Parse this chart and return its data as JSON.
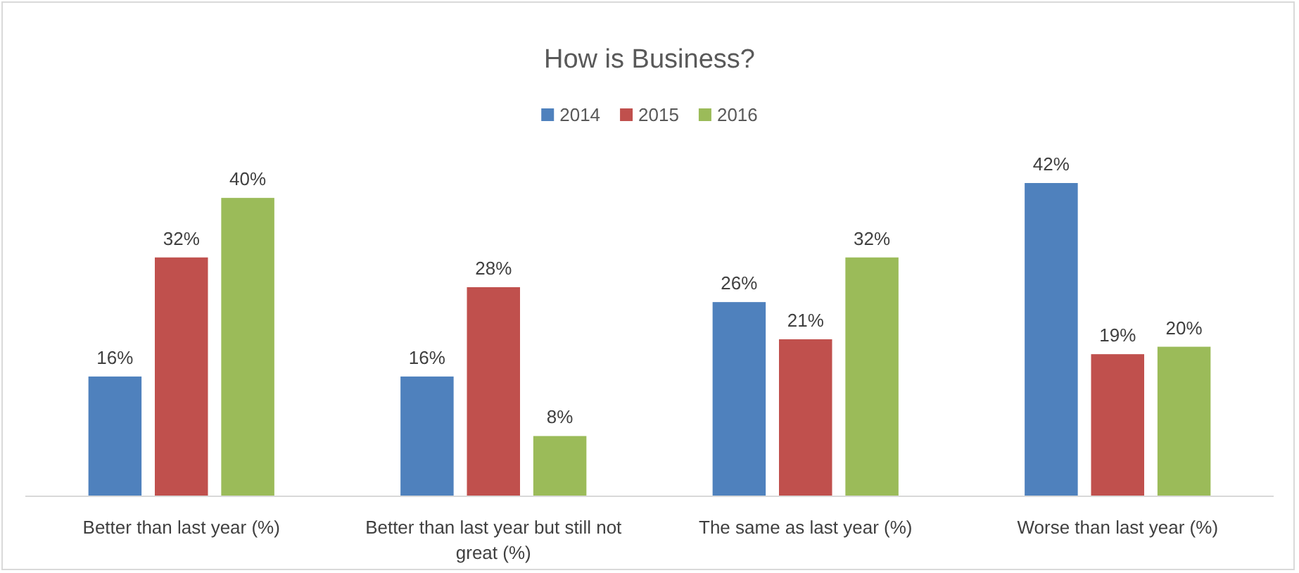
{
  "chart_data": {
    "type": "bar",
    "title": "How is Business?",
    "categories": [
      "Better than last year (%)",
      "Better than last year but still not great (%)",
      "The same as last year (%)",
      "Worse than last year (%)"
    ],
    "series": [
      {
        "name": "2014",
        "color": "#4f81bd",
        "values": [
          16,
          16,
          26,
          42
        ],
        "value_labels": [
          "16%",
          "16%",
          "26%",
          "42%"
        ]
      },
      {
        "name": "2015",
        "color": "#c0504d",
        "values": [
          32,
          28,
          21,
          19
        ],
        "value_labels": [
          "32%",
          "28%",
          "21%",
          "19%"
        ]
      },
      {
        "name": "2016",
        "color": "#9bbb59",
        "values": [
          40,
          8,
          32,
          20
        ],
        "value_labels": [
          "40%",
          "8%",
          "32%",
          "20%"
        ]
      }
    ],
    "legend": "top",
    "grid": false
  }
}
